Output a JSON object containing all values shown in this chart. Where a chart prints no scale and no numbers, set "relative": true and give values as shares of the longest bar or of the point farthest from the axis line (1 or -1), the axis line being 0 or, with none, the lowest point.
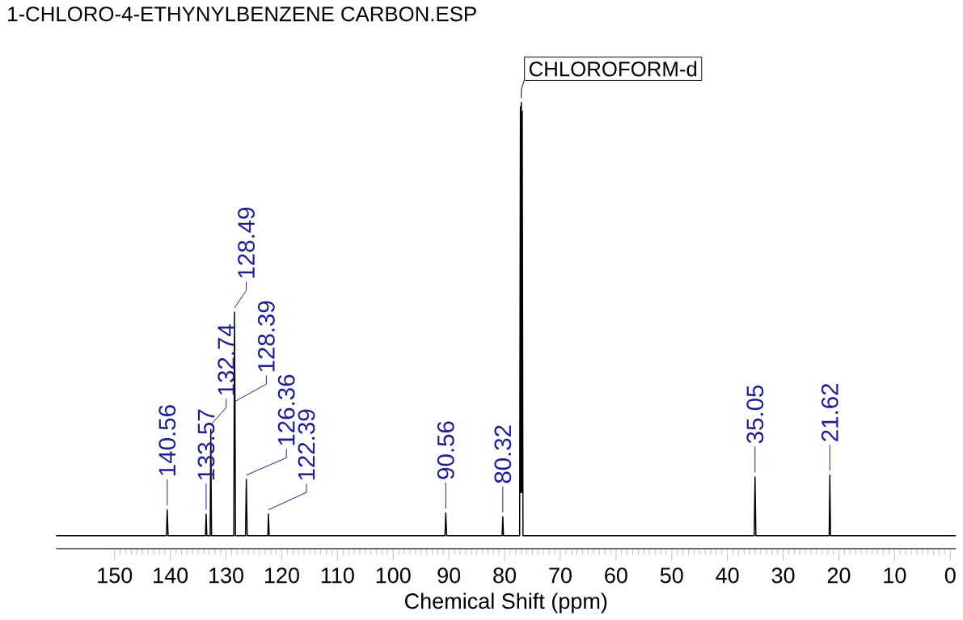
{
  "chart_data": {
    "type": "line",
    "relative": true,
    "title": "1-CHLORO-4-ETHYNYLBENZENE CARBON.ESP",
    "xlabel": "Chemical Shift (ppm)",
    "x": [
      160.5,
      140.7,
      140.56,
      140.4,
      133.7,
      133.57,
      133.45,
      132.85,
      132.74,
      132.6,
      128.6,
      128.49,
      128.39,
      128.3,
      126.5,
      126.36,
      126.2,
      122.5,
      122.39,
      122.25,
      90.7,
      90.56,
      90.4,
      80.45,
      80.32,
      80.2,
      77.3,
      77.16,
      77.08,
      77.0,
      76.92,
      76.84,
      76.7,
      35.2,
      35.05,
      34.9,
      21.75,
      21.62,
      21.5,
      -1
    ],
    "values": [
      0,
      0,
      0.06,
      0,
      0,
      0.05,
      0,
      0,
      0.246,
      0,
      0,
      0.516,
      0.3,
      0,
      0,
      0.13,
      0,
      0,
      0.05,
      0,
      0,
      0.053,
      0,
      0,
      0.044,
      0,
      0,
      0.99,
      0.1,
      1.0,
      0.1,
      0.98,
      0,
      0,
      0.136,
      0,
      0,
      0.14,
      0,
      0
    ],
    "color": "#000000",
    "xlim": [
      160.5,
      -1
    ],
    "xticks": [
      150,
      140,
      130,
      120,
      110,
      100,
      90,
      80,
      70,
      60,
      50,
      40,
      30,
      20,
      10,
      0
    ],
    "annotations": [
      {
        "text": "140.56",
        "x": 140.56,
        "y": 0.06
      },
      {
        "text": "133.57",
        "x": 133.57,
        "y": 0.05
      },
      {
        "text": "132.74",
        "x": 132.74,
        "y": 0.246
      },
      {
        "text": "128.49",
        "x": 128.49,
        "y": 0.516
      },
      {
        "text": "128.39",
        "x": 128.39,
        "y": 0.3
      },
      {
        "text": "126.36",
        "x": 126.36,
        "y": 0.13
      },
      {
        "text": "122.39",
        "x": 122.39,
        "y": 0.05
      },
      {
        "text": "90.56",
        "x": 90.56,
        "y": 0.053
      },
      {
        "text": "80.32",
        "x": 80.32,
        "y": 0.044
      },
      {
        "text": "35.05",
        "x": 35.05,
        "y": 0.136
      },
      {
        "text": "21.62",
        "x": 21.62,
        "y": 0.14
      },
      {
        "text": "CHLOROFORM-d",
        "x": 77.0,
        "y": 1.0
      }
    ]
  }
}
